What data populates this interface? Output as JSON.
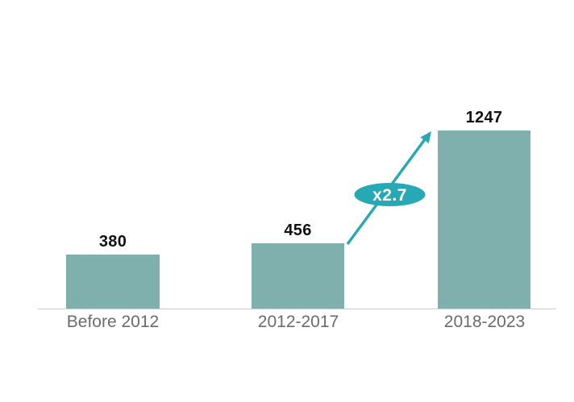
{
  "chart_data": {
    "type": "bar",
    "title": "",
    "xlabel": "",
    "ylabel": "",
    "categories": [
      "Before 2012",
      "2012-2017",
      "2018-2023"
    ],
    "values": [
      380,
      456,
      1247
    ],
    "annotation": {
      "label": "x2.7"
    },
    "axis": {
      "baseline_visible": true,
      "gridlines": false,
      "y_axis_visible": false,
      "value_labels_on_bars": true
    },
    "legend": "none",
    "colors": {
      "bar": "#80b0ad",
      "accent": "#26a9b4",
      "axis_line": "#cbcbcb",
      "value_label": "#121212",
      "category_label": "#6b6b6b",
      "annotation_text": "#ffffff",
      "background": "#ffffff"
    }
  }
}
